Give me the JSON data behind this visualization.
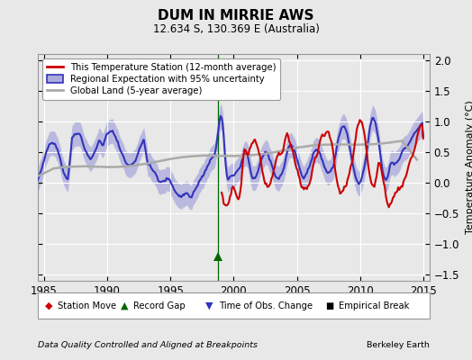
{
  "title": "DUM IN MIRRIE AWS",
  "subtitle": "12.634 S, 130.369 E (Australia)",
  "ylabel": "Temperature Anomaly (°C)",
  "xlabel_left": "Data Quality Controlled and Aligned at Breakpoints",
  "xlabel_right": "Berkeley Earth",
  "xlim": [
    1984.5,
    2015.5
  ],
  "ylim": [
    -1.6,
    2.1
  ],
  "yticks": [
    -1.5,
    -1.0,
    -0.5,
    0.0,
    0.5,
    1.0,
    1.5,
    2.0
  ],
  "xticks": [
    1985,
    1990,
    1995,
    2000,
    2005,
    2010,
    2015
  ],
  "background_color": "#e8e8e8",
  "plot_bg_color": "#e8e8e8",
  "grid_color": "#ffffff",
  "vertical_line_x": 1998.75,
  "record_gap_x": 1998.75,
  "record_gap_y": -1.2,
  "regional_color": "#3333bb",
  "regional_fill_color": "#aaaadd",
  "station_color": "#cc0000",
  "global_color": "#aaaaaa",
  "legend_labels": [
    "This Temperature Station (12-month average)",
    "Regional Expectation with 95% uncertainty",
    "Global Land (5-year average)"
  ]
}
